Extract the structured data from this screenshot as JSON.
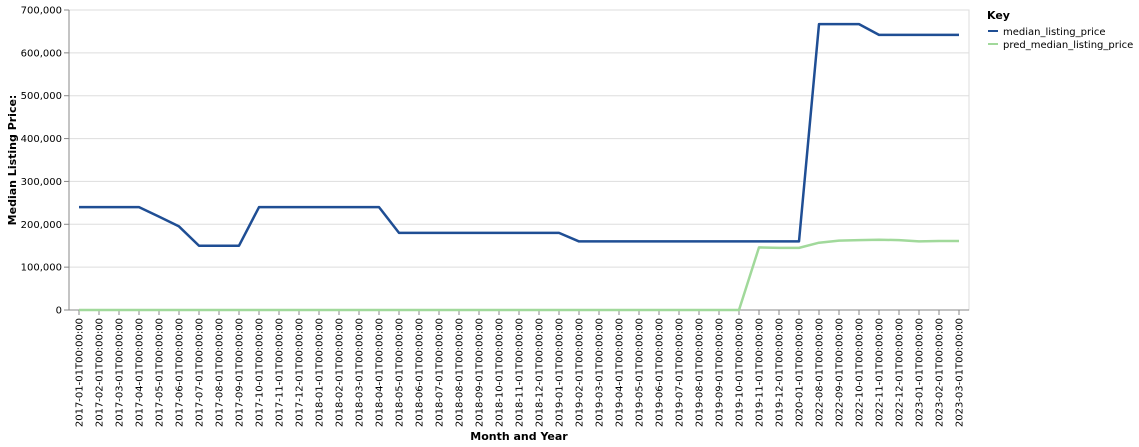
{
  "chart_data": {
    "type": "line",
    "xlabel": "Month and Year",
    "ylabel": "Median Listing Price:",
    "ylim": [
      0,
      700000
    ],
    "yticks": [
      0,
      100000,
      200000,
      300000,
      400000,
      500000,
      600000,
      700000
    ],
    "ytick_labels": [
      "0",
      "100,000",
      "200,000",
      "300,000",
      "400,000",
      "500,000",
      "600,000",
      "700,000"
    ],
    "grid": true,
    "legend": {
      "title": "Key",
      "placement": "top-right"
    },
    "categories": [
      "2017-01-01T00:00:00",
      "2017-02-01T00:00:00",
      "2017-03-01T00:00:00",
      "2017-04-01T00:00:00",
      "2017-05-01T00:00:00",
      "2017-06-01T00:00:00",
      "2017-07-01T00:00:00",
      "2017-08-01T00:00:00",
      "2017-09-01T00:00:00",
      "2017-10-01T00:00:00",
      "2017-11-01T00:00:00",
      "2017-12-01T00:00:00",
      "2018-01-01T00:00:00",
      "2018-02-01T00:00:00",
      "2018-03-01T00:00:00",
      "2018-04-01T00:00:00",
      "2018-05-01T00:00:00",
      "2018-06-01T00:00:00",
      "2018-07-01T00:00:00",
      "2018-08-01T00:00:00",
      "2018-09-01T00:00:00",
      "2018-10-01T00:00:00",
      "2018-11-01T00:00:00",
      "2018-12-01T00:00:00",
      "2019-01-01T00:00:00",
      "2019-02-01T00:00:00",
      "2019-03-01T00:00:00",
      "2019-04-01T00:00:00",
      "2019-05-01T00:00:00",
      "2019-06-01T00:00:00",
      "2019-07-01T00:00:00",
      "2019-08-01T00:00:00",
      "2019-09-01T00:00:00",
      "2019-10-01T00:00:00",
      "2019-11-01T00:00:00",
      "2019-12-01T00:00:00",
      "2020-01-01T00:00:00",
      "2022-08-01T00:00:00",
      "2022-09-01T00:00:00",
      "2022-10-01T00:00:00",
      "2022-11-01T00:00:00",
      "2022-12-01T00:00:00",
      "2023-01-01T00:00:00",
      "2023-02-01T00:00:00",
      "2023-03-01T00:00:00"
    ],
    "series": [
      {
        "name": "median_listing_price",
        "color": "#1f4e94",
        "values": [
          240000,
          240000,
          240000,
          240000,
          218000,
          195000,
          150000,
          150000,
          150000,
          240000,
          240000,
          240000,
          240000,
          240000,
          240000,
          240000,
          180000,
          180000,
          180000,
          180000,
          180000,
          180000,
          180000,
          180000,
          180000,
          160000,
          160000,
          160000,
          160000,
          160000,
          160000,
          160000,
          160000,
          160000,
          160000,
          160000,
          160000,
          667000,
          667000,
          667000,
          642000,
          642000,
          642000,
          642000,
          642000
        ]
      },
      {
        "name": "pred_median_listing_price",
        "color": "#a1d99b",
        "values": [
          0,
          0,
          0,
          0,
          0,
          0,
          0,
          0,
          0,
          0,
          0,
          0,
          0,
          0,
          0,
          0,
          0,
          0,
          0,
          0,
          0,
          0,
          0,
          0,
          0,
          0,
          0,
          0,
          0,
          0,
          0,
          0,
          0,
          0,
          146000,
          145000,
          145000,
          157000,
          162000,
          163000,
          164000,
          163000,
          160000,
          161000,
          161000
        ]
      }
    ]
  }
}
